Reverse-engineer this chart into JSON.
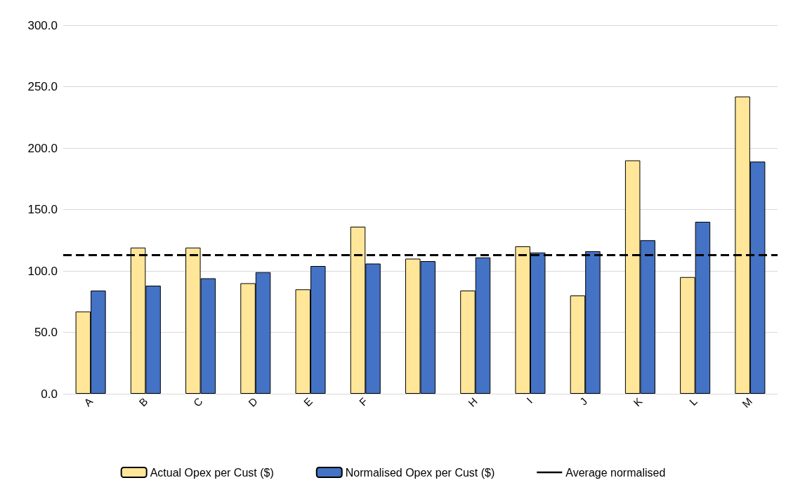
{
  "chart_data": {
    "type": "bar",
    "categories": [
      "A",
      "B",
      "C",
      "D",
      "E",
      "F",
      null,
      "H",
      "I",
      "J",
      "K",
      "L",
      "M"
    ],
    "series": [
      {
        "name": "Actual Opex per Cust ($)",
        "color": "#ffe699",
        "values": [
          67,
          119,
          119,
          90,
          85,
          136,
          110,
          84,
          120,
          80,
          190,
          95,
          242
        ]
      },
      {
        "name": "Normalised Opex per Cust ($)",
        "color": "#4472c4",
        "values": [
          84,
          88,
          94,
          99,
          104,
          106,
          108,
          111,
          115,
          116,
          125,
          140,
          189
        ]
      }
    ],
    "ref_lines": [
      {
        "axis": "y",
        "value": 113,
        "label": "Average normalised",
        "color": "#000000",
        "line_style": "dashed"
      }
    ],
    "ylim": [
      0,
      300
    ],
    "yticks": [
      {
        "value": 0,
        "label": "0.0"
      },
      {
        "value": 50,
        "label": "50.0"
      },
      {
        "value": 100,
        "label": "100.0"
      },
      {
        "value": 150,
        "label": "150.0"
      },
      {
        "value": 200,
        "label": "200.0"
      },
      {
        "value": 250,
        "label": "250.0"
      },
      {
        "value": 300,
        "label": "300.0"
      }
    ],
    "grid": "y",
    "legend": "bottom"
  }
}
